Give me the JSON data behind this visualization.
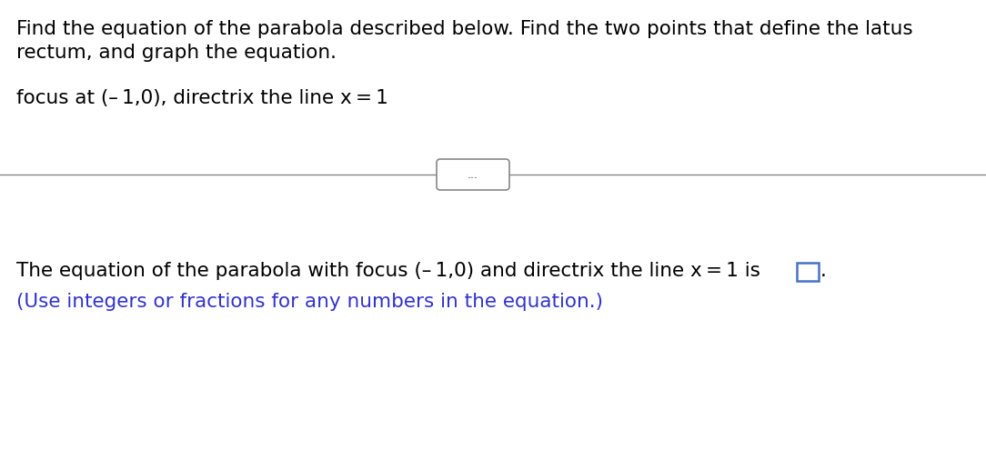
{
  "background_color": "#ffffff",
  "line1_text": "Find the equation of the parabola described below. Find the two points that define the latus",
  "line2_text": "rectum, and graph the equation.",
  "line3_text": "focus at (– 1,0), directrix the line x = 1",
  "dots_text": "...",
  "bottom_line1_text": "The equation of the parabola with focus (– 1,0) and directrix the line x = 1 is",
  "bottom_line2_text": "(Use integers or fractions for any numbers in the equation.)",
  "bottom_line2_color": "#3333cc",
  "box_color": "#4472c4",
  "separator_color": "#888888",
  "font_size_main": 15.5,
  "font_family": "DejaVu Sans"
}
